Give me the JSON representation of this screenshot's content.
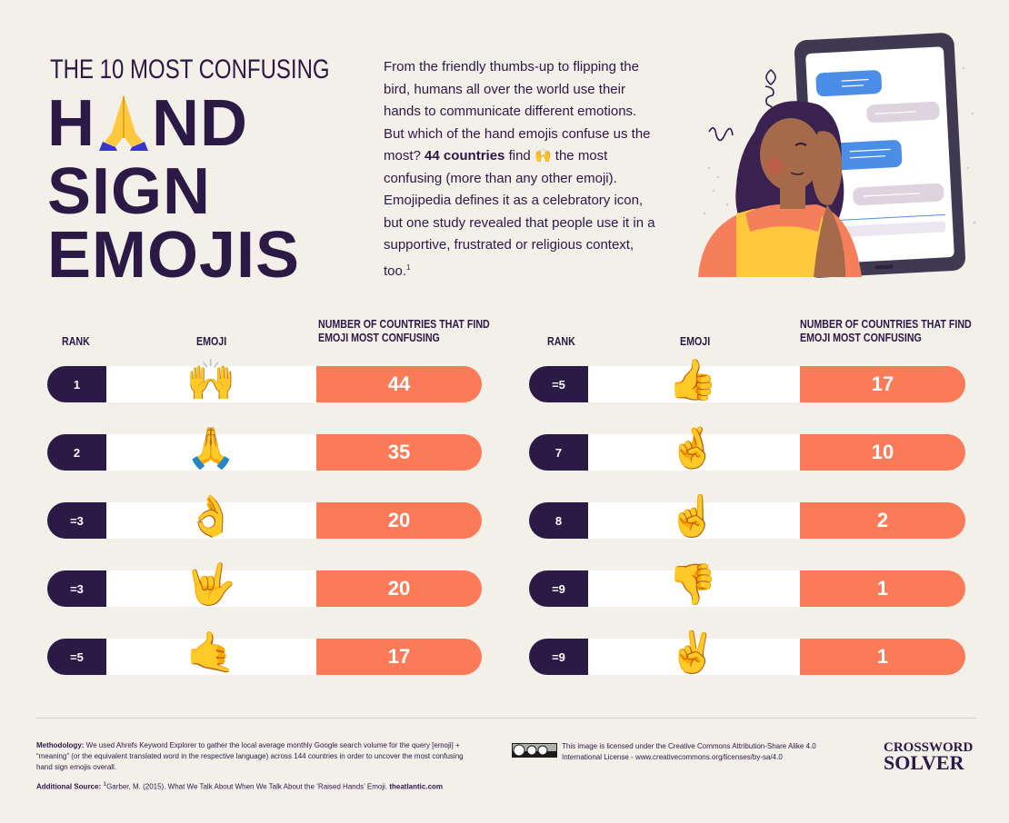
{
  "header": {
    "kicker": "THE 10 MOST CONFUSING",
    "title_line1_a": "H",
    "title_line1_b": "ND",
    "title_line2": "SIGN",
    "title_line3": "EMOJIS",
    "title_icon": "folded-hands-icon"
  },
  "intro": {
    "p1": "From the friendly thumbs-up to flipping the bird, humans all over the world use their hands to communicate different emotions. But which of the hand emojis confuse us the most?",
    "bold": "44 countries",
    "mid": "find",
    "p2": "the most confusing (more than any other emoji). Emojipedia defines it as a celebratory icon, but one study revealed that people use it in a supportive, frustrated or religious context, too.",
    "sup": "1"
  },
  "columns": {
    "rank": "RANK",
    "emoji": "EMOJI",
    "count_line1": "NUMBER OF COUNTRIES THAT FIND",
    "count_line2": "EMOJI MOST CONFUSING"
  },
  "left_rows": [
    {
      "rank": "1",
      "emoji": "🙌",
      "icon": "raising-hands-icon",
      "count": "44"
    },
    {
      "rank": "2",
      "emoji": "🙏",
      "icon": "folded-hands-icon",
      "count": "35"
    },
    {
      "rank": "=3",
      "emoji": "👌",
      "icon": "ok-hand-icon",
      "count": "20"
    },
    {
      "rank": "=3",
      "emoji": "🤟",
      "icon": "love-you-gesture-icon",
      "count": "20"
    },
    {
      "rank": "=5",
      "emoji": "🤙",
      "icon": "call-me-hand-icon",
      "count": "17"
    }
  ],
  "right_rows": [
    {
      "rank": "=5",
      "emoji": "👍",
      "icon": "thumbs-up-icon",
      "count": "17"
    },
    {
      "rank": "7",
      "emoji": "🤞",
      "icon": "crossed-fingers-icon",
      "count": "10"
    },
    {
      "rank": "8",
      "emoji": "☝",
      "icon": "index-pointing-up-icon",
      "count": "2"
    },
    {
      "rank": "=9",
      "emoji": "👎",
      "icon": "thumbs-down-icon",
      "count": "1"
    },
    {
      "rank": "=9",
      "emoji": "✌",
      "icon": "victory-hand-icon",
      "count": "1"
    }
  ],
  "footer": {
    "methodology_label": "Methodology:",
    "methodology_text": "We used Ahrefs Keyword Explorer to gather the local average monthly Google search volume for the query [emoji] + “meaning” (or the equivalent translated word in the respective language) across 144 countries in order to uncover the most confusing hand sign emojis overall.",
    "source_label": "Additional Source:",
    "source_sup": "1",
    "source_text": "Garber, M. (2015). What We Talk About When We Talk About the ‘Raised Hands’ Emoji.",
    "source_site": "theatlantic.com",
    "license_text": "This image is licensed under the Creative Commons Attribution-Share Alike 4.0 International License - www.creativecommons.org/licenses/by-sa/4.0",
    "brand_line1": "CROSSWORD",
    "brand_line2": "SOLVER"
  },
  "colors": {
    "navy": "#2a1a45",
    "coral": "#fb7a58",
    "background": "#f3efe9",
    "yellow": "#ffc83d"
  }
}
